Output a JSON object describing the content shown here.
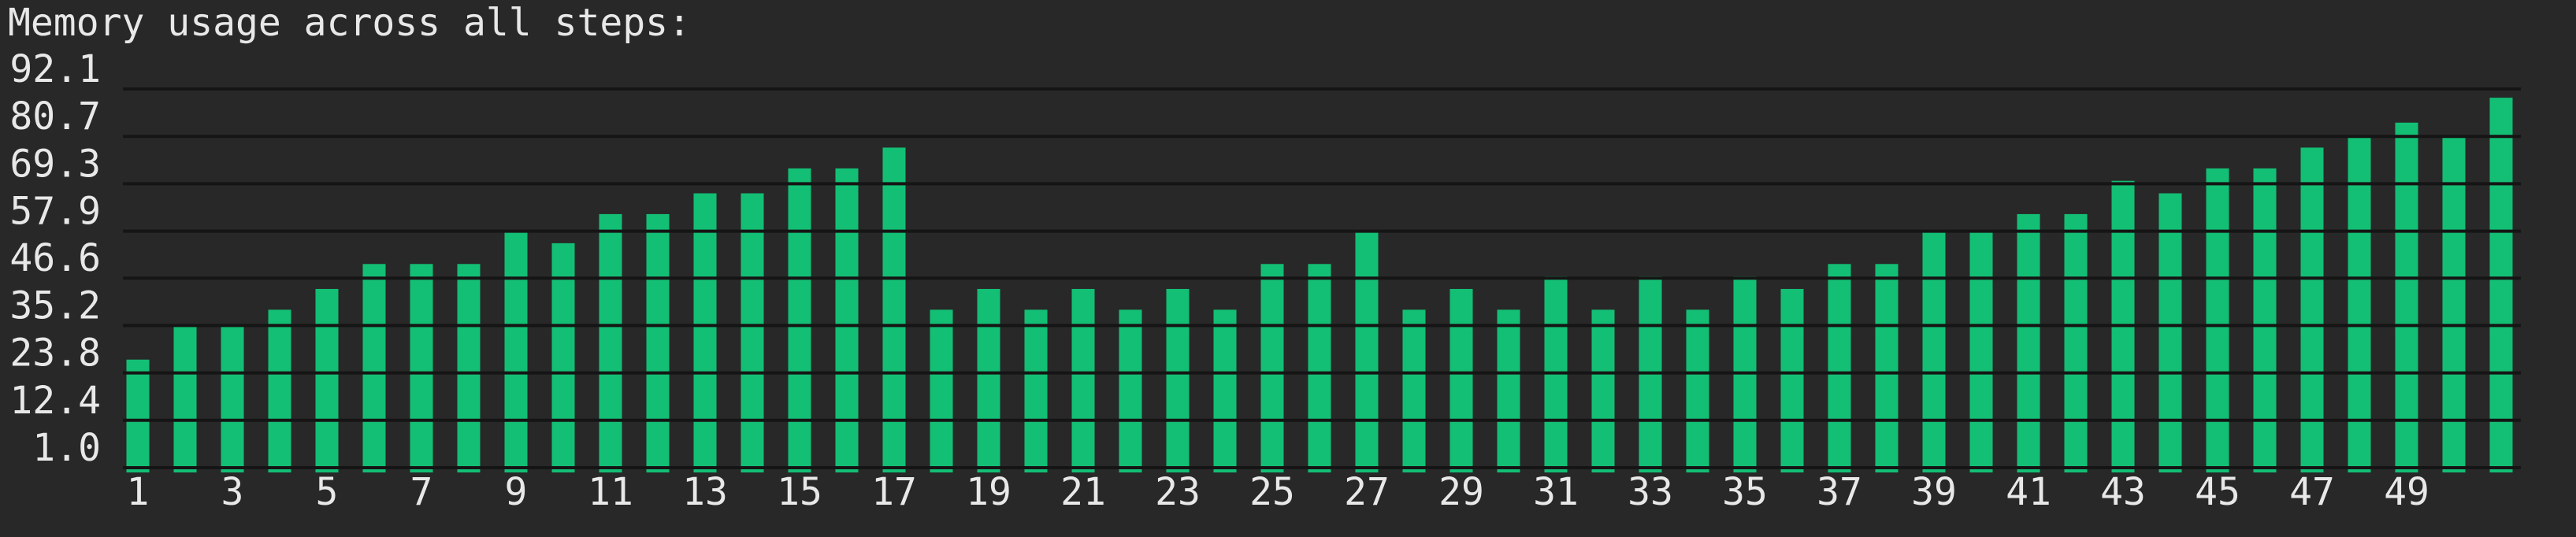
{
  "chart_data": {
    "type": "bar",
    "title": "Memory usage across all steps:",
    "categories": [
      "1",
      null,
      "3",
      null,
      "5",
      null,
      "7",
      null,
      "9",
      null,
      "11",
      null,
      "13",
      null,
      "15",
      null,
      "17",
      null,
      "19",
      null,
      "21",
      null,
      "23",
      null,
      "25",
      null,
      "27",
      null,
      "29",
      null,
      "31",
      null,
      "33",
      null,
      "35",
      null,
      "37",
      null,
      "39",
      null,
      "41",
      null,
      "43",
      null,
      "45",
      null,
      "47",
      null,
      "49",
      null,
      null
    ],
    "values": [
      27,
      35,
      35,
      39,
      44,
      50,
      50,
      50,
      58,
      55,
      62,
      62,
      67,
      67,
      73,
      73,
      78,
      39,
      44,
      39,
      44,
      39,
      44,
      39,
      50,
      50,
      58,
      39,
      44,
      39,
      47,
      39,
      47,
      39,
      47,
      44,
      50,
      50,
      58,
      58,
      62,
      62,
      70,
      67,
      73,
      73,
      78,
      81,
      84,
      81,
      90
    ],
    "color": "#13bf75",
    "ylim": [
      1.0,
      92.1
    ],
    "yticks": [
      {
        "value": 1.0,
        "label": "1.0"
      },
      12.4,
      23.8,
      35.2,
      46.6,
      57.9,
      69.3,
      80.7,
      92.1
    ],
    "grid": true
  }
}
